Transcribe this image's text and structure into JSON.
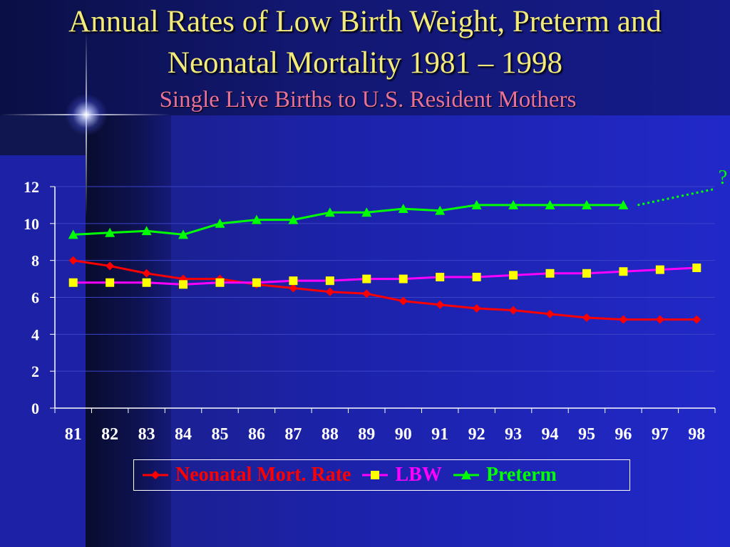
{
  "title_line1": "Annual Rates of Low Birth Weight, Preterm and",
  "title_line2": "Neonatal Mortality 1981 – 1998",
  "subtitle": "Single Live Births to U.S. Resident Mothers",
  "chart_data": {
    "type": "line",
    "categories": [
      "81",
      "82",
      "83",
      "84",
      "85",
      "86",
      "87",
      "88",
      "89",
      "90",
      "91",
      "92",
      "93",
      "94",
      "95",
      "96",
      "97",
      "98"
    ],
    "ylim": [
      0,
      12
    ],
    "yticks": [
      "0",
      "2",
      "4",
      "6",
      "8",
      "10",
      "12"
    ],
    "grid": true,
    "legend_position": "bottom",
    "series": [
      {
        "name": "Neonatal Mort. Rate",
        "color": "#ff0000",
        "marker": "diamond",
        "values": [
          8.0,
          7.7,
          7.3,
          7.0,
          7.0,
          6.7,
          6.5,
          6.3,
          6.2,
          5.8,
          5.6,
          5.4,
          5.3,
          5.1,
          4.9,
          4.8,
          4.8,
          4.8
        ]
      },
      {
        "name": "LBW",
        "color": "#ff00ff",
        "marker_color": "#ffff00",
        "marker": "square",
        "values": [
          6.8,
          6.8,
          6.8,
          6.7,
          6.8,
          6.8,
          6.9,
          6.9,
          7.0,
          7.0,
          7.1,
          7.1,
          7.2,
          7.3,
          7.3,
          7.4,
          7.5,
          7.6
        ]
      },
      {
        "name": "Preterm",
        "color": "#00ff00",
        "marker": "triangle",
        "values": [
          9.4,
          9.5,
          9.6,
          9.4,
          10.0,
          10.2,
          10.2,
          10.6,
          10.6,
          10.8,
          10.7,
          11.0,
          11.0,
          11.0,
          11.0,
          11.0,
          null,
          null
        ]
      }
    ],
    "annotation": {
      "text": "?",
      "color": "#00ff00",
      "style": "dotted projection of Preterm after 96"
    }
  }
}
